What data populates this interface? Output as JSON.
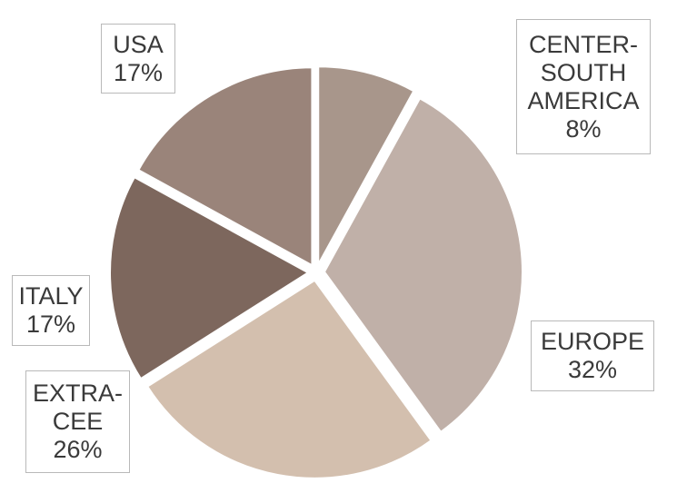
{
  "chart_data": {
    "type": "pie",
    "slices": [
      {
        "label_lines": [
          "CENTER-",
          "SOUTH",
          "AMERICA"
        ],
        "pct_text": "8%",
        "value": 8,
        "color": "#a8968b"
      },
      {
        "label_lines": [
          "EUROPE"
        ],
        "pct_text": "32%",
        "value": 32,
        "color": "#c0b0a8"
      },
      {
        "label_lines": [
          "EXTRA-",
          "CEE"
        ],
        "pct_text": "26%",
        "value": 26,
        "color": "#d3bfae"
      },
      {
        "label_lines": [
          "ITALY"
        ],
        "pct_text": "17%",
        "value": 17,
        "color": "#7d675d"
      },
      {
        "label_lines": [
          "USA"
        ],
        "pct_text": "17%",
        "value": 17,
        "color": "#9a847a"
      }
    ],
    "start_angle_deg": 0,
    "direction": "clockwise",
    "exploded": true
  }
}
